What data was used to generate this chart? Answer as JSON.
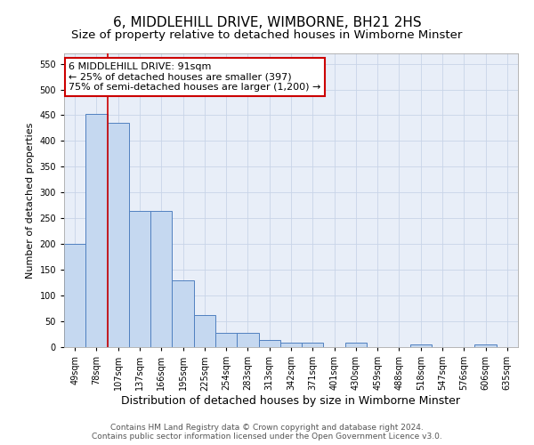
{
  "title": "6, MIDDLEHILL DRIVE, WIMBORNE, BH21 2HS",
  "subtitle": "Size of property relative to detached houses in Wimborne Minster",
  "xlabel": "Distribution of detached houses by size in Wimborne Minster",
  "ylabel": "Number of detached properties",
  "footer_line1": "Contains HM Land Registry data © Crown copyright and database right 2024.",
  "footer_line2": "Contains public sector information licensed under the Open Government Licence v3.0.",
  "bar_labels": [
    "49sqm",
    "78sqm",
    "107sqm",
    "137sqm",
    "166sqm",
    "195sqm",
    "225sqm",
    "254sqm",
    "283sqm",
    "313sqm",
    "342sqm",
    "371sqm",
    "401sqm",
    "430sqm",
    "459sqm",
    "488sqm",
    "518sqm",
    "547sqm",
    "576sqm",
    "606sqm",
    "635sqm"
  ],
  "bar_values": [
    200,
    452,
    435,
    265,
    265,
    130,
    62,
    28,
    28,
    14,
    8,
    8,
    0,
    8,
    0,
    0,
    5,
    0,
    0,
    5,
    0
  ],
  "bar_color": "#c5d8f0",
  "bar_edge_color": "#5080c0",
  "annotation_text": "6 MIDDLEHILL DRIVE: 91sqm\n← 25% of detached houses are smaller (397)\n75% of semi-detached houses are larger (1,200) →",
  "annotation_box_color": "#ffffff",
  "annotation_box_edge_color": "#cc0000",
  "vline_x": 1.5,
  "vline_color": "#cc0000",
  "ylim": [
    0,
    570
  ],
  "yticks": [
    0,
    50,
    100,
    150,
    200,
    250,
    300,
    350,
    400,
    450,
    500,
    550
  ],
  "grid_color": "#c8d4e8",
  "background_color": "#e8eef8",
  "title_fontsize": 11,
  "subtitle_fontsize": 9.5,
  "xlabel_fontsize": 9,
  "ylabel_fontsize": 8,
  "tick_fontsize": 7,
  "annotation_fontsize": 8,
  "footer_fontsize": 6.5
}
